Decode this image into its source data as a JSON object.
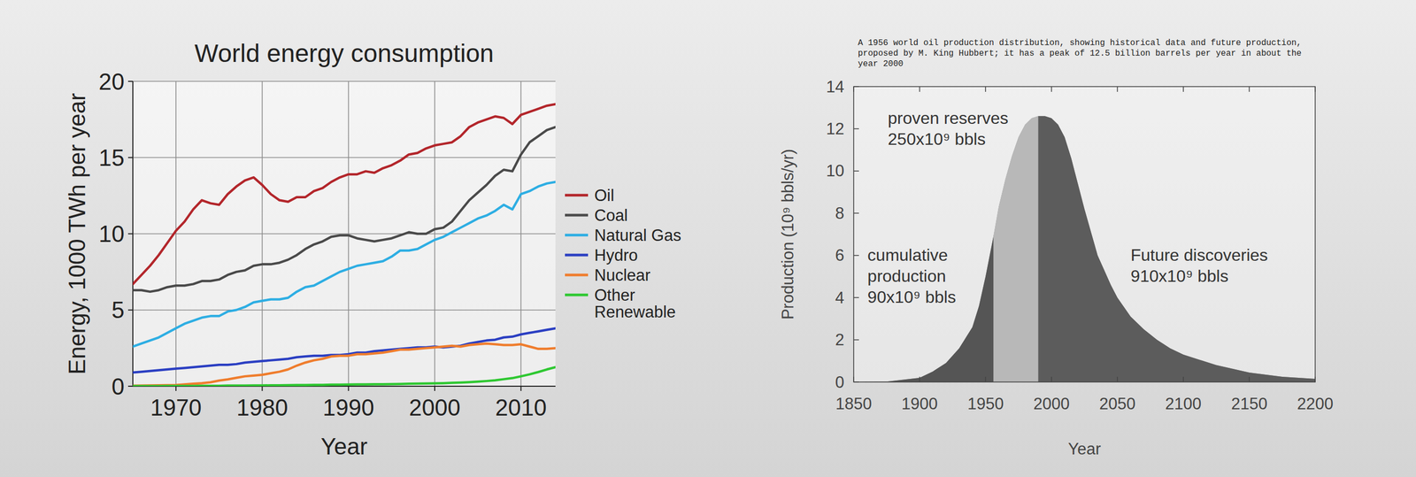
{
  "chart_data": [
    {
      "type": "line",
      "title": "World energy consumption",
      "x_label": "Year",
      "y_label": "Energy, 1000 TWh per year",
      "x": [
        1965,
        1966,
        1967,
        1968,
        1969,
        1970,
        1971,
        1972,
        1973,
        1974,
        1975,
        1976,
        1977,
        1978,
        1979,
        1980,
        1981,
        1982,
        1983,
        1984,
        1985,
        1986,
        1987,
        1988,
        1989,
        1990,
        1991,
        1992,
        1993,
        1994,
        1995,
        1996,
        1997,
        1998,
        1999,
        2000,
        2001,
        2002,
        2003,
        2004,
        2005,
        2006,
        2007,
        2008,
        2009,
        2010,
        2011,
        2012,
        2013,
        2014
      ],
      "xlim": [
        1965,
        2014
      ],
      "xticks": [
        1970,
        1980,
        1990,
        2000,
        2010
      ],
      "ylim": [
        0,
        20
      ],
      "yticks": [
        0,
        5,
        10,
        15,
        20
      ],
      "grid": true,
      "legend": "right",
      "series": [
        {
          "name": "Oil",
          "color": "#b3262b",
          "values": [
            6.7,
            7.3,
            7.9,
            8.6,
            9.4,
            10.2,
            10.8,
            11.6,
            12.2,
            12.0,
            11.9,
            12.6,
            13.1,
            13.5,
            13.7,
            13.2,
            12.6,
            12.2,
            12.1,
            12.4,
            12.4,
            12.8,
            13.0,
            13.4,
            13.7,
            13.9,
            13.9,
            14.1,
            14.0,
            14.3,
            14.5,
            14.8,
            15.2,
            15.3,
            15.6,
            15.8,
            15.9,
            16.0,
            16.4,
            17.0,
            17.3,
            17.5,
            17.7,
            17.6,
            17.2,
            17.8,
            18.0,
            18.2,
            18.4,
            18.5
          ]
        },
        {
          "name": "Coal",
          "color": "#4a4a4a",
          "values": [
            6.3,
            6.3,
            6.2,
            6.3,
            6.5,
            6.6,
            6.6,
            6.7,
            6.9,
            6.9,
            7.0,
            7.3,
            7.5,
            7.6,
            7.9,
            8.0,
            8.0,
            8.1,
            8.3,
            8.6,
            9.0,
            9.3,
            9.5,
            9.8,
            9.9,
            9.9,
            9.7,
            9.6,
            9.5,
            9.6,
            9.7,
            9.9,
            10.1,
            10.0,
            10.0,
            10.3,
            10.4,
            10.8,
            11.5,
            12.2,
            12.7,
            13.2,
            13.8,
            14.2,
            14.1,
            15.2,
            16.0,
            16.4,
            16.8,
            17.0
          ]
        },
        {
          "name": "Natural Gas",
          "color": "#2eaee3",
          "values": [
            2.6,
            2.8,
            3.0,
            3.2,
            3.5,
            3.8,
            4.1,
            4.3,
            4.5,
            4.6,
            4.6,
            4.9,
            5.0,
            5.2,
            5.5,
            5.6,
            5.7,
            5.7,
            5.8,
            6.2,
            6.5,
            6.6,
            6.9,
            7.2,
            7.5,
            7.7,
            7.9,
            8.0,
            8.1,
            8.2,
            8.5,
            8.9,
            8.9,
            9.0,
            9.3,
            9.6,
            9.8,
            10.1,
            10.4,
            10.7,
            11.0,
            11.2,
            11.5,
            11.9,
            11.6,
            12.6,
            12.8,
            13.1,
            13.3,
            13.4
          ]
        },
        {
          "name": "Hydro",
          "color": "#2b3fc2",
          "values": [
            0.9,
            0.95,
            1.0,
            1.05,
            1.1,
            1.15,
            1.2,
            1.25,
            1.3,
            1.35,
            1.4,
            1.4,
            1.45,
            1.55,
            1.6,
            1.65,
            1.7,
            1.75,
            1.8,
            1.9,
            1.95,
            2.0,
            2.0,
            2.05,
            2.05,
            2.1,
            2.2,
            2.2,
            2.3,
            2.35,
            2.4,
            2.45,
            2.5,
            2.55,
            2.55,
            2.6,
            2.55,
            2.6,
            2.65,
            2.8,
            2.9,
            3.0,
            3.05,
            3.2,
            3.25,
            3.4,
            3.5,
            3.6,
            3.7,
            3.8
          ]
        },
        {
          "name": "Nuclear",
          "color": "#ef7d2d",
          "values": [
            0.03,
            0.04,
            0.05,
            0.06,
            0.07,
            0.08,
            0.12,
            0.16,
            0.2,
            0.26,
            0.37,
            0.45,
            0.55,
            0.65,
            0.7,
            0.75,
            0.85,
            0.95,
            1.1,
            1.35,
            1.55,
            1.7,
            1.8,
            1.95,
            2.0,
            2.0,
            2.1,
            2.1,
            2.15,
            2.2,
            2.3,
            2.4,
            2.4,
            2.45,
            2.5,
            2.55,
            2.6,
            2.65,
            2.6,
            2.7,
            2.75,
            2.8,
            2.75,
            2.7,
            2.7,
            2.75,
            2.6,
            2.45,
            2.45,
            2.5
          ]
        },
        {
          "name": "Other Renewable",
          "color": "#2fc832",
          "values": [
            0.01,
            0.01,
            0.01,
            0.01,
            0.02,
            0.02,
            0.02,
            0.02,
            0.03,
            0.03,
            0.03,
            0.04,
            0.04,
            0.04,
            0.05,
            0.05,
            0.06,
            0.06,
            0.07,
            0.08,
            0.08,
            0.09,
            0.09,
            0.1,
            0.1,
            0.11,
            0.12,
            0.12,
            0.13,
            0.13,
            0.14,
            0.15,
            0.16,
            0.17,
            0.18,
            0.19,
            0.2,
            0.22,
            0.24,
            0.27,
            0.3,
            0.34,
            0.39,
            0.46,
            0.53,
            0.65,
            0.78,
            0.93,
            1.1,
            1.25
          ]
        }
      ]
    },
    {
      "type": "area",
      "title": "A 1956 world oil production distribution, showing historical data and future production, proposed by M. King Hubbert; it has a peak of 12.5 billion barrels per year in about the year 2000",
      "x_label": "Year",
      "y_label": "Production (10⁹ bbls/yr)",
      "x": [
        1850,
        1875,
        1900,
        1910,
        1920,
        1930,
        1940,
        1945,
        1950,
        1956,
        1960,
        1965,
        1970,
        1975,
        1980,
        1985,
        1990,
        1995,
        2000,
        2005,
        2010,
        2015,
        2020,
        2025,
        2030,
        2035,
        2040,
        2045,
        2050,
        2060,
        2070,
        2080,
        2090,
        2100,
        2125,
        2150,
        2175,
        2200
      ],
      "xlim": [
        1850,
        2200
      ],
      "xticks": [
        1850,
        1900,
        1950,
        2000,
        2050,
        2100,
        2150,
        2200
      ],
      "ylim": [
        0,
        14
      ],
      "yticks": [
        0,
        2,
        4,
        6,
        8,
        10,
        12,
        14
      ],
      "grid": false,
      "series": [
        {
          "color": "#7a7a7a",
          "values": [
            0,
            0.02,
            0.2,
            0.5,
            0.9,
            1.6,
            2.6,
            3.6,
            5.0,
            6.9,
            8.3,
            9.6,
            10.7,
            11.6,
            12.2,
            12.5,
            12.6,
            12.6,
            12.5,
            12.2,
            11.6,
            10.6,
            9.4,
            8.2,
            7.1,
            6.0,
            5.3,
            4.6,
            4.0,
            3.1,
            2.5,
            2.0,
            1.6,
            1.3,
            0.8,
            0.45,
            0.25,
            0.15
          ]
        }
      ],
      "regions": [
        {
          "label": [
            "cumulative",
            "production",
            "90x10⁹ bbls"
          ],
          "x_start": 1850,
          "x_end": 1956,
          "color": "#4f4f4f"
        },
        {
          "label": [
            "proven reserves",
            "250x10⁹ bbls"
          ],
          "x_start": 1956,
          "x_end": 1990,
          "color": "#bdbdbd"
        },
        {
          "label": [
            "Future discoveries",
            "910x10⁹ bbls"
          ],
          "x_start": 1990,
          "x_end": 2200,
          "color": "#575757"
        }
      ]
    }
  ]
}
